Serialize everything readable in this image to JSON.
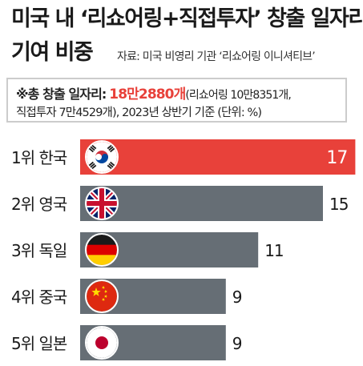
{
  "title": {
    "line1": "미국 내 ‘리쇼어링+직접투자’ 창출 일자리",
    "line2": "기여 비중"
  },
  "source": "자료: 미국 비영리 기관 ‘리쇼어링 이니셔티브’",
  "note": {
    "prefix": "※총 창출 일자리:",
    "total": "18만2880개",
    "paren_open": "(리쇼어링 10만8351개,",
    "line2": "직접투자 7만4529개), 2023년 상반기 기준  (단위: %)"
  },
  "colors": {
    "highlight": "#e8413a",
    "bar": "#666e75",
    "total_text": "#e8413a"
  },
  "chart_data": {
    "type": "bar",
    "orientation": "horizontal",
    "categories": [
      "1위 한국",
      "2위 영국",
      "3위 독일",
      "4위 중국",
      "5위 일본"
    ],
    "values": [
      17,
      15,
      11,
      9,
      9
    ],
    "flags": [
      "flag-korea-icon",
      "flag-uk-icon",
      "flag-germany-icon",
      "flag-china-icon",
      "flag-japan-icon"
    ],
    "highlight_index": 0,
    "unit": "%",
    "value_labels": [
      "17",
      "15",
      "11",
      "9",
      "9"
    ]
  }
}
